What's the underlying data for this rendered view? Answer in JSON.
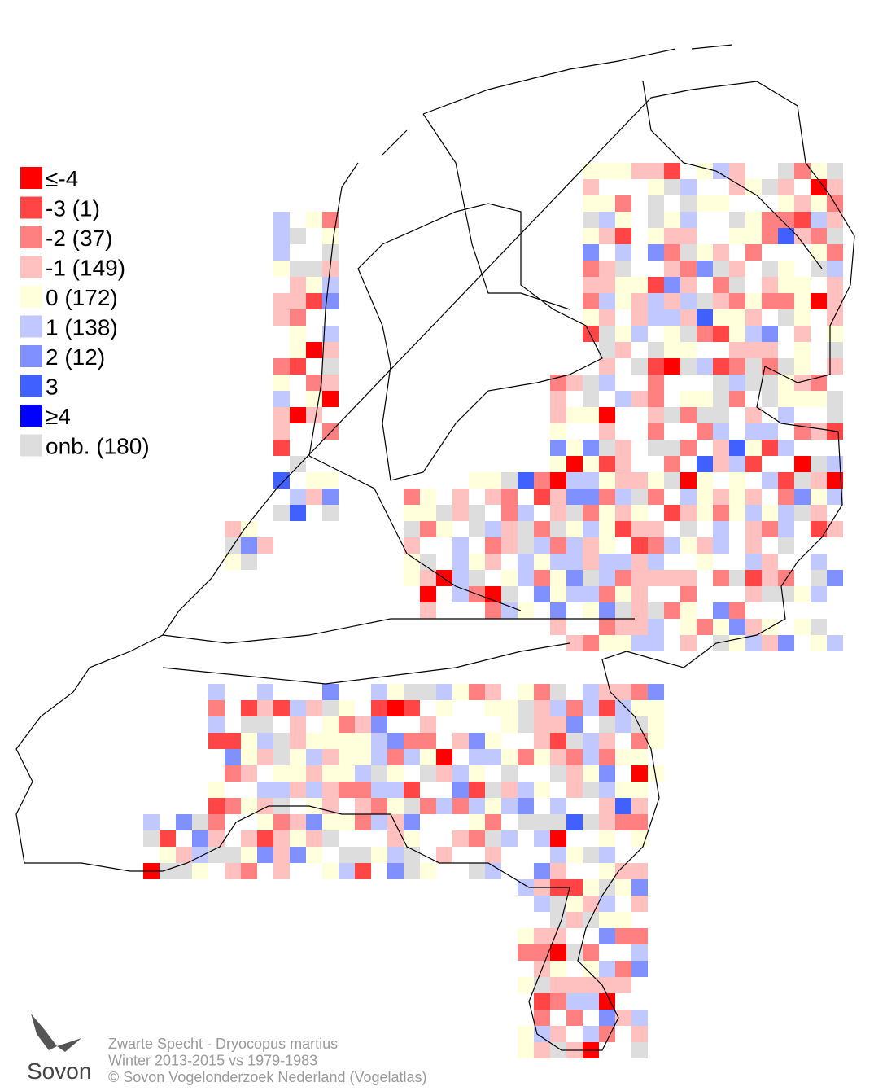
{
  "legend": {
    "items": [
      {
        "label": "≤-4",
        "color": "#ff0000"
      },
      {
        "label": "-3 (1)",
        "color": "#ff4545"
      },
      {
        "label": "-2 (37)",
        "color": "#ff8080"
      },
      {
        "label": "-1 (149)",
        "color": "#ffc0c0"
      },
      {
        "label": " 0 (172)",
        "color": "#ffffdc"
      },
      {
        "label": " 1 (138)",
        "color": "#c0c8ff"
      },
      {
        "label": " 2 (12)",
        "color": "#8090ff"
      },
      {
        "label": " 3",
        "color": "#4060ff"
      },
      {
        "label": "≥4",
        "color": "#0000ff"
      },
      {
        "label": "onb. (180)",
        "color": "#dddddd"
      }
    ]
  },
  "caption": {
    "lines": [
      "Zwarte Specht - Dryocopus martius",
      "Winter 2013-2015 vs 1979-1983",
      "© Sovon Vogelonderzoek Nederland (Vogelatlas)"
    ]
  },
  "logo": {
    "text": "Sovon"
  }
}
